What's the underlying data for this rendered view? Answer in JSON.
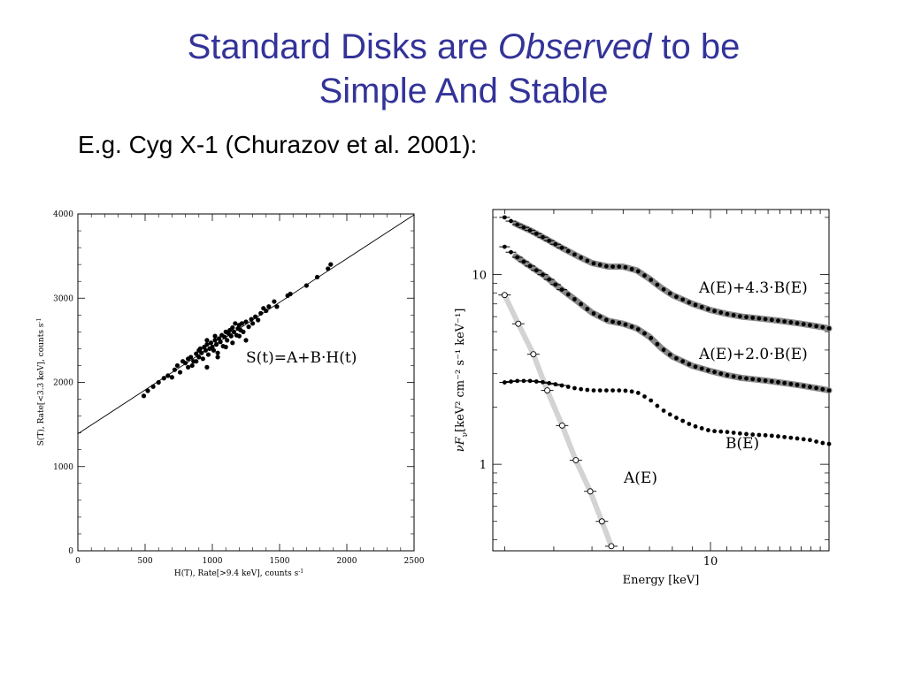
{
  "slide": {
    "title_line1_a": "Standard Disks are ",
    "title_line1_em": "Observed",
    "title_line1_b": " to be",
    "title_line2": "Simple And Stable",
    "subtitle": "E.g. Cyg X-1 (Churazov et al. 2001):"
  },
  "chart_data": [
    {
      "type": "scatter",
      "xlabel": "H(T), Rate[>9.4 keV], counts s",
      "xlabel_sup": "-1",
      "ylabel": "S(T), Rate[<3.3 keV], counts s",
      "ylabel_sup": "-1",
      "xlim": [
        0,
        2500
      ],
      "ylim": [
        0,
        4000
      ],
      "xticks": [
        0,
        500,
        1000,
        1500,
        2000,
        2500
      ],
      "yticks": [
        0,
        1000,
        2000,
        3000,
        4000
      ],
      "annotation": "S(t)=A+B·H(t)",
      "fit_line": {
        "intercept": 1390,
        "slope": 1.04
      },
      "points": [
        [
          490,
          1840
        ],
        [
          520,
          1900
        ],
        [
          560,
          1950
        ],
        [
          600,
          2000
        ],
        [
          640,
          2050
        ],
        [
          670,
          2080
        ],
        [
          700,
          2060
        ],
        [
          720,
          2150
        ],
        [
          740,
          2200
        ],
        [
          760,
          2120
        ],
        [
          780,
          2250
        ],
        [
          800,
          2230
        ],
        [
          820,
          2280
        ],
        [
          840,
          2300
        ],
        [
          850,
          2200
        ],
        [
          860,
          2250
        ],
        [
          880,
          2340
        ],
        [
          900,
          2300
        ],
        [
          910,
          2400
        ],
        [
          920,
          2350
        ],
        [
          930,
          2280
        ],
        [
          940,
          2420
        ],
        [
          950,
          2380
        ],
        [
          960,
          2450
        ],
        [
          970,
          2330
        ],
        [
          980,
          2400
        ],
        [
          990,
          2470
        ],
        [
          1000,
          2420
        ],
        [
          1010,
          2380
        ],
        [
          1020,
          2500
        ],
        [
          1030,
          2450
        ],
        [
          1040,
          2350
        ],
        [
          1050,
          2520
        ],
        [
          1060,
          2480
        ],
        [
          1070,
          2560
        ],
        [
          1080,
          2430
        ],
        [
          1090,
          2540
        ],
        [
          1100,
          2600
        ],
        [
          1110,
          2500
        ],
        [
          1120,
          2580
        ],
        [
          1130,
          2620
        ],
        [
          1140,
          2550
        ],
        [
          1150,
          2650
        ],
        [
          1160,
          2600
        ],
        [
          1170,
          2700
        ],
        [
          1180,
          2560
        ],
        [
          1190,
          2640
        ],
        [
          1200,
          2680
        ],
        [
          1210,
          2620
        ],
        [
          1220,
          2700
        ],
        [
          1230,
          2600
        ],
        [
          1250,
          2720
        ],
        [
          1270,
          2660
        ],
        [
          1290,
          2750
        ],
        [
          1300,
          2700
        ],
        [
          1320,
          2780
        ],
        [
          1340,
          2740
        ],
        [
          1360,
          2820
        ],
        [
          1380,
          2880
        ],
        [
          1400,
          2850
        ],
        [
          1420,
          2900
        ],
        [
          1460,
          2960
        ],
        [
          1480,
          2900
        ],
        [
          1560,
          3030
        ],
        [
          1580,
          3050
        ],
        [
          1700,
          3150
        ],
        [
          1780,
          3250
        ],
        [
          1860,
          3350
        ],
        [
          1880,
          3400
        ],
        [
          880,
          2250
        ],
        [
          960,
          2180
        ],
        [
          1040,
          2300
        ],
        [
          1100,
          2420
        ],
        [
          1150,
          2470
        ],
        [
          1200,
          2550
        ],
        [
          1250,
          2500
        ],
        [
          960,
          2500
        ],
        [
          1020,
          2550
        ],
        [
          900,
          2380
        ],
        [
          820,
          2180
        ]
      ]
    },
    {
      "type": "scatter",
      "xlabel": "Energy [keV]",
      "ylabel": "νF",
      "ylabel_sub": "ν",
      "ylabel_units": "[keV² cm⁻² s⁻¹ keV⁻¹]",
      "xscale": "log",
      "yscale": "log",
      "xlim": [
        2.8,
        20
      ],
      "ylim": [
        0.35,
        22
      ],
      "xticks": [
        10
      ],
      "yticks": [
        1,
        10
      ],
      "series": [
        {
          "name": "A(E)+4.3·B(E)",
          "x": [
            3.0,
            3.2,
            3.5,
            3.8,
            4.2,
            4.6,
            5.0,
            5.5,
            6.0,
            6.5,
            7.0,
            7.5,
            8.0,
            9.0,
            10,
            11,
            12,
            13,
            14,
            15,
            16,
            17,
            18,
            19,
            20
          ],
          "y": [
            20,
            18.5,
            17,
            15.5,
            13.8,
            12.5,
            11.5,
            11,
            11,
            10.5,
            9.5,
            8.5,
            7.8,
            7.0,
            6.5,
            6.2,
            6.0,
            5.9,
            5.8,
            5.7,
            5.6,
            5.5,
            5.4,
            5.3,
            5.2
          ]
        },
        {
          "name": "A(E)+2.0·B(E)",
          "x": [
            3.0,
            3.2,
            3.5,
            3.8,
            4.2,
            4.6,
            5.0,
            5.5,
            6.0,
            6.5,
            7.0,
            7.5,
            8.0,
            9.0,
            10,
            11,
            12,
            13,
            14,
            15,
            16,
            17,
            18,
            19,
            20
          ],
          "y": [
            14,
            12.5,
            11,
            9.8,
            8.3,
            7.2,
            6.3,
            5.7,
            5.5,
            5.2,
            4.7,
            4.1,
            3.7,
            3.3,
            3.1,
            2.95,
            2.85,
            2.8,
            2.75,
            2.7,
            2.65,
            2.6,
            2.55,
            2.5,
            2.45
          ]
        },
        {
          "name": "B(E)",
          "x": [
            3.0,
            3.2,
            3.5,
            3.8,
            4.2,
            4.6,
            5.0,
            5.5,
            6.0,
            6.5,
            7.0,
            7.5,
            8.0,
            9.0,
            10,
            11,
            12,
            13,
            14,
            15,
            16,
            17,
            18,
            19,
            20
          ],
          "y": [
            2.7,
            2.75,
            2.75,
            2.7,
            2.6,
            2.5,
            2.45,
            2.45,
            2.45,
            2.4,
            2.2,
            1.95,
            1.8,
            1.6,
            1.5,
            1.48,
            1.45,
            1.43,
            1.42,
            1.4,
            1.38,
            1.36,
            1.34,
            1.3,
            1.28
          ]
        },
        {
          "name": "A(E)",
          "x": [
            3.0,
            3.25,
            3.55,
            3.85,
            4.2,
            4.55,
            4.95,
            5.3
          ],
          "y": [
            7.8,
            5.5,
            3.8,
            2.45,
            1.6,
            1.05,
            0.72,
            0.5
          ]
        }
      ],
      "a_e_extra": {
        "x": [
          5.6
        ],
        "y": [
          0.37
        ]
      }
    }
  ]
}
